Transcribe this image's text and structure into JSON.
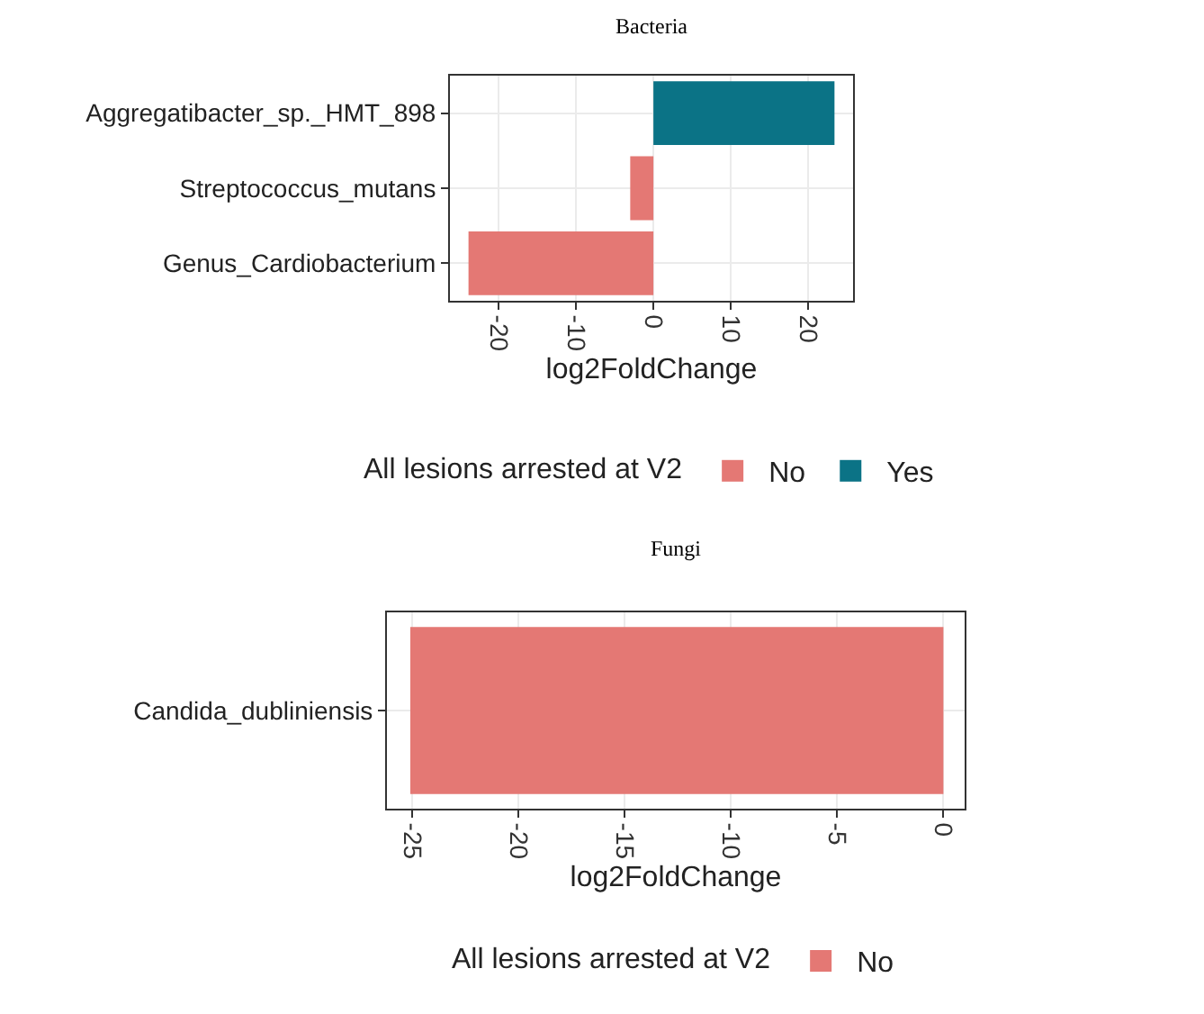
{
  "chart_data": [
    {
      "type": "bar",
      "title": "Bacteria",
      "orientation": "horizontal",
      "categories": [
        "Aggregatibacter_sp._HMT_898",
        "Streptococcus_mutans",
        "Genus_Cardiobacterium"
      ],
      "series": [
        {
          "name": "No",
          "color": "#e47874",
          "values": [
            null,
            -3,
            -23.9
          ]
        },
        {
          "name": "Yes",
          "color": "#0b7386",
          "values": [
            23.4,
            null,
            null
          ]
        }
      ],
      "xlabel": "log2FoldChange",
      "legend_title": "All lesions arrested at V2",
      "legend": "bottom",
      "grid": true,
      "xlim": [
        -26.3,
        25.8
      ],
      "xticks": [
        -20,
        -10,
        0,
        10,
        20
      ]
    },
    {
      "type": "bar",
      "title": "Fungi",
      "orientation": "horizontal",
      "categories": [
        "Candida_dubliniensis"
      ],
      "series": [
        {
          "name": "No",
          "color": "#e47874",
          "values": [
            -25.1
          ]
        }
      ],
      "xlabel": "log2FoldChange",
      "legend_title": "All lesions arrested at V2",
      "legend": "bottom",
      "grid": true,
      "xlim": [
        -26.2,
        1
      ],
      "xticks": [
        -25,
        -20,
        -15,
        -10,
        -5,
        0
      ]
    }
  ]
}
